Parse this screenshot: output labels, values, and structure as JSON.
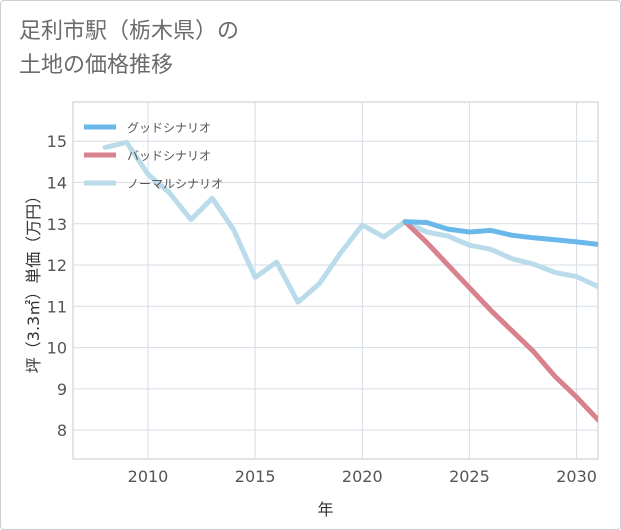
{
  "title_lines": [
    "足利市駅（栃木県）の",
    "土地の価格推移"
  ],
  "chart_data": {
    "type": "line",
    "title": "足利市駅（栃木県）の土地の価格推移",
    "xlabel": "年",
    "ylabel": "坪（3.3㎡）単価（万円）",
    "xlim": [
      2006.5,
      2031
    ],
    "ylim": [
      7.3,
      15.95
    ],
    "xticks": [
      2010,
      2015,
      2020,
      2025,
      2030
    ],
    "yticks": [
      8,
      9,
      10,
      11,
      12,
      13,
      14,
      15
    ],
    "grid": true,
    "legend_position": "top-left",
    "series": [
      {
        "name": "グッドシナリオ",
        "color": "#6ab8ea",
        "x": [
          2022,
          2023,
          2024,
          2025,
          2026,
          2027,
          2028,
          2029,
          2030,
          2031
        ],
        "y": [
          13.05,
          13.03,
          12.87,
          12.8,
          12.84,
          12.72,
          12.66,
          12.61,
          12.56,
          12.5
        ]
      },
      {
        "name": "バッドシナリオ",
        "color": "#d8828e",
        "x": [
          2022,
          2023,
          2024,
          2025,
          2026,
          2027,
          2028,
          2029,
          2030,
          2031
        ],
        "y": [
          13.05,
          12.55,
          12.0,
          11.45,
          10.9,
          10.4,
          9.9,
          9.3,
          8.8,
          8.25
        ]
      },
      {
        "name": "ノーマルシナリオ",
        "color": "#badcea",
        "x": [
          2008,
          2009,
          2010,
          2011,
          2012,
          2013,
          2014,
          2015,
          2016,
          2017,
          2018,
          2019,
          2020,
          2021,
          2022,
          2023,
          2024,
          2025,
          2026,
          2027,
          2028,
          2029,
          2030,
          2031
        ],
        "y": [
          14.85,
          14.97,
          14.2,
          13.75,
          13.1,
          13.62,
          12.85,
          11.7,
          12.07,
          11.1,
          11.55,
          12.3,
          12.97,
          12.68,
          13.05,
          12.8,
          12.7,
          12.48,
          12.38,
          12.15,
          12.02,
          11.82,
          11.72,
          11.48
        ]
      }
    ]
  }
}
